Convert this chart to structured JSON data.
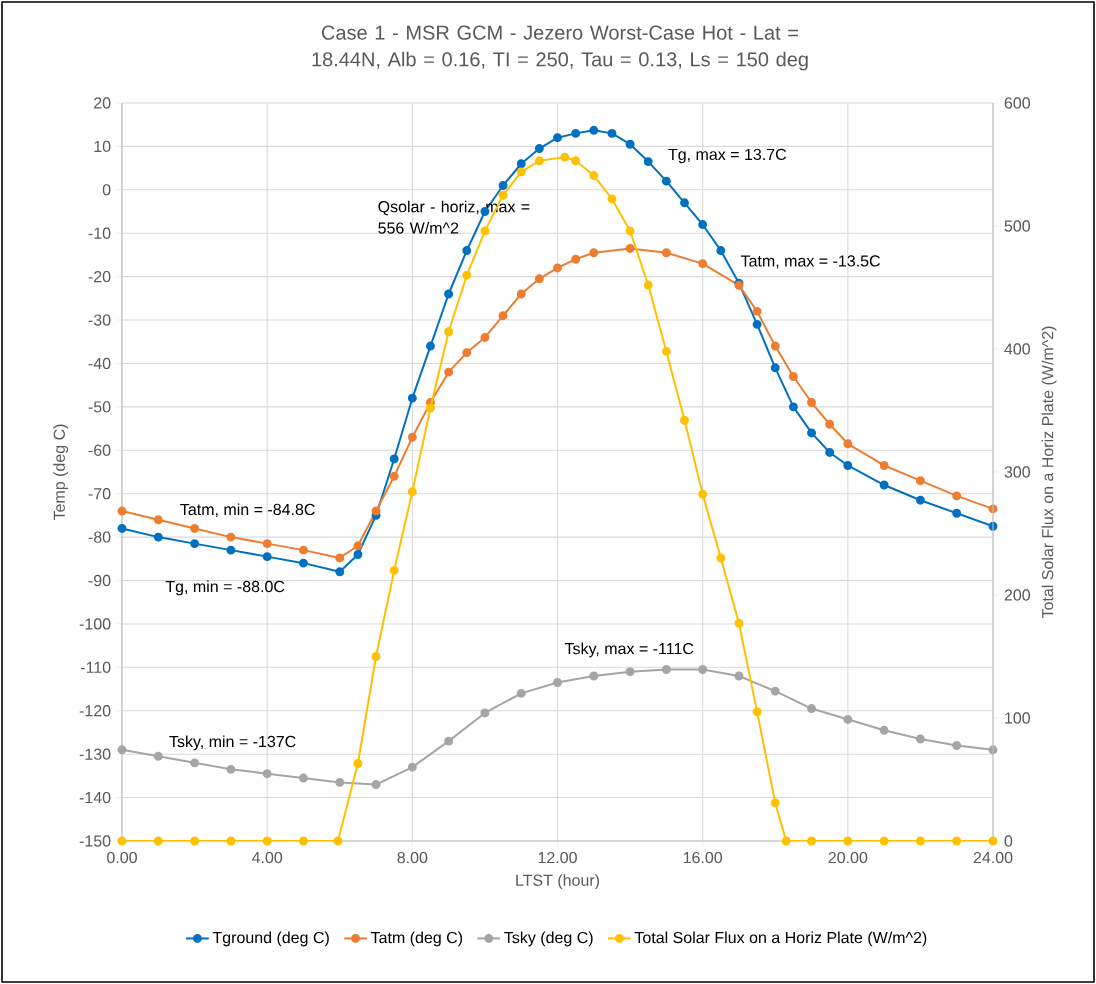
{
  "chart_data": {
    "type": "line",
    "title": "Case 1 - MSR GCM - Jezero Worst-Case Hot - Lat = 18.44N, Alb = 0.16, TI = 250, Tau = 0.13, Ls = 150 deg",
    "xlabel": "LTST (hour)",
    "ylabel": "Temp (deg C)",
    "y2label": "Total Solar Flux on a Horiz Plate (W/m^2)",
    "xlim": [
      0,
      24
    ],
    "xticks": [
      {
        "value": 0,
        "label": "0.00"
      },
      {
        "value": 4,
        "label": "4.00"
      },
      {
        "value": 8,
        "label": "8.00"
      },
      {
        "value": 12,
        "label": "12.00"
      },
      {
        "value": 16,
        "label": "16.00"
      },
      {
        "value": 20,
        "label": "20.00"
      },
      {
        "value": 24,
        "label": "24.00"
      }
    ],
    "ylim": [
      -150,
      20
    ],
    "yticks": [
      -150,
      -140,
      -130,
      -120,
      -110,
      -100,
      -90,
      -80,
      -70,
      -60,
      -50,
      -40,
      -30,
      -20,
      -10,
      0,
      10,
      20
    ],
    "y2lim": [
      0,
      600
    ],
    "y2ticks": [
      0,
      100,
      200,
      300,
      400,
      500,
      600
    ],
    "grid": true,
    "legend": "bottom",
    "marker": "circle",
    "series": [
      {
        "name": "Tground (deg C)",
        "color": "#0070c0",
        "x": [
          0,
          1,
          2,
          3,
          4,
          5,
          6,
          6.5,
          7,
          7.5,
          8,
          8.5,
          9,
          9.5,
          10,
          10.5,
          11,
          11.5,
          12,
          12.5,
          13,
          13.5,
          14,
          14.5,
          15,
          15.5,
          16,
          16.5,
          17,
          17.5,
          18,
          18.5,
          19,
          19.5,
          20,
          21,
          22,
          23,
          24
        ],
        "values": [
          -78,
          -80,
          -81.5,
          -83,
          -84.5,
          -86,
          -88,
          -84,
          -75,
          -62,
          -48,
          -36,
          -24,
          -14,
          -5,
          1,
          6,
          9.5,
          12,
          13,
          13.7,
          13,
          10.5,
          6.5,
          2,
          -3,
          -8,
          -14,
          -21.5,
          -31,
          -41,
          -50,
          -56,
          -60.5,
          -63.5,
          -68,
          -71.5,
          -74.5,
          -77.5
        ]
      },
      {
        "name": "Tatm (deg C)",
        "color": "#ed7d31",
        "x": [
          0,
          1,
          2,
          3,
          4,
          5,
          6,
          6.5,
          7,
          7.5,
          8,
          8.5,
          9,
          9.5,
          10,
          10.5,
          11,
          11.5,
          12,
          12.5,
          13,
          14,
          15,
          16,
          17,
          17.5,
          18,
          18.5,
          19,
          19.5,
          20,
          21,
          22,
          23,
          24
        ],
        "values": [
          -74,
          -76,
          -78,
          -80,
          -81.5,
          -83,
          -84.8,
          -82,
          -74,
          -66,
          -57,
          -49,
          -42,
          -37.5,
          -34,
          -29,
          -24,
          -20.5,
          -18,
          -16,
          -14.5,
          -13.5,
          -14.5,
          -17,
          -22,
          -28,
          -36,
          -43,
          -49,
          -54,
          -58.5,
          -63.5,
          -67,
          -70.5,
          -73.5
        ]
      },
      {
        "name": "Tsky (deg C)",
        "color": "#a5a5a5",
        "x": [
          0,
          1,
          2,
          3,
          4,
          5,
          6,
          7,
          8,
          9,
          10,
          11,
          12,
          13,
          14,
          15,
          16,
          17,
          18,
          19,
          20,
          21,
          22,
          23,
          24
        ],
        "values": [
          -129,
          -130.5,
          -132,
          -133.5,
          -134.5,
          -135.5,
          -136.5,
          -137,
          -133,
          -127,
          -120.5,
          -116,
          -113.5,
          -112,
          -111,
          -110.5,
          -110.5,
          -112,
          -115.5,
          -119.5,
          -122,
          -124.5,
          -126.5,
          -128,
          -129
        ]
      },
      {
        "name": "Total Solar Flux on a Horiz Plate (W/m^2)",
        "color": "#ffc000",
        "axis": "y2",
        "x": [
          0,
          1,
          2,
          3,
          4,
          5,
          5.95,
          6.5,
          7,
          7.5,
          8,
          8.5,
          9,
          9.5,
          10,
          10.5,
          11,
          11.5,
          12.2,
          12.5,
          13,
          13.5,
          14,
          14.5,
          15,
          15.5,
          16,
          16.5,
          17,
          17.5,
          18,
          18.3,
          19,
          20,
          21,
          22,
          23,
          24
        ],
        "values": [
          0,
          0,
          0,
          0,
          0,
          0,
          0,
          63,
          150,
          220,
          284,
          352,
          414,
          460,
          496,
          525,
          544,
          553,
          556,
          553,
          541,
          522,
          496,
          452,
          398,
          342,
          282,
          230,
          177,
          105,
          31,
          0,
          0,
          0,
          0,
          0,
          0,
          0
        ]
      }
    ],
    "annotations": [
      "Qsolar - horiz, max = 556 W/m^2",
      "Tg, max = 13.7C",
      "Tatm, max = -13.5C",
      "Tatm, min = -84.8C",
      "Tg, min = -88.0C",
      "Tsky, max = -111C",
      "Tsky, min = -137C"
    ]
  }
}
